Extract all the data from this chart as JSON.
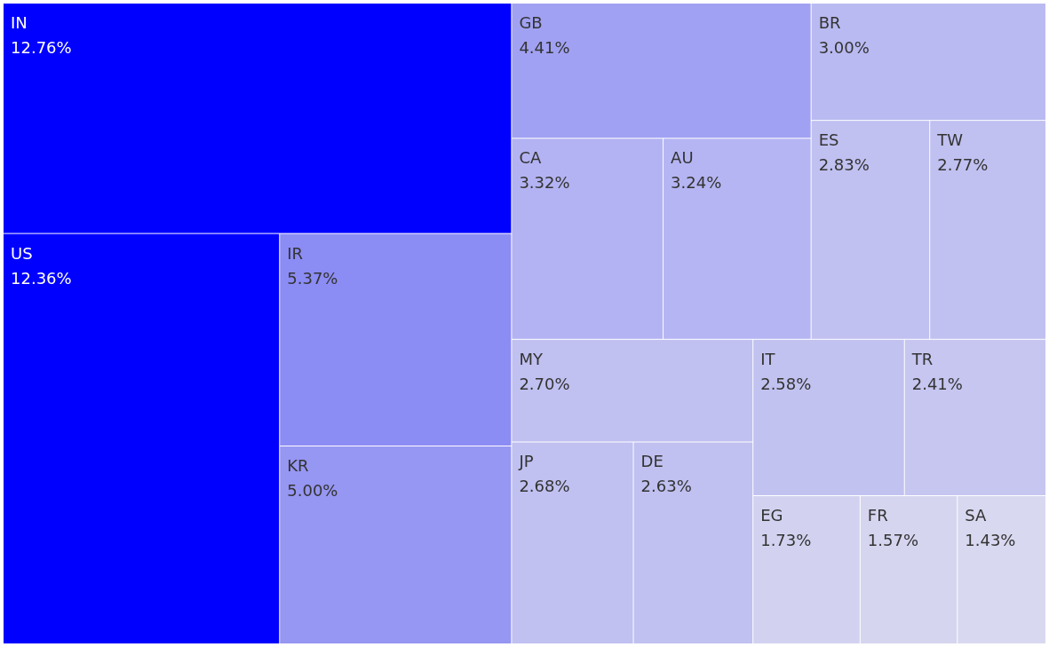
{
  "chart_data": {
    "type": "other",
    "categories": [
      "IN",
      "US",
      "IR",
      "KR",
      "GB",
      "CA",
      "AU",
      "BR",
      "ES",
      "TW",
      "MY",
      "JP",
      "DE",
      "IT",
      "TR",
      "EG",
      "FR",
      "SA"
    ],
    "values": [
      12.76,
      12.36,
      5.37,
      5.0,
      4.41,
      3.32,
      3.24,
      3.0,
      2.83,
      2.77,
      2.7,
      2.68,
      2.63,
      2.58,
      2.41,
      1.73,
      1.57,
      1.43
    ],
    "value_labels": [
      "12.76%",
      "12.36%",
      "5.37%",
      "5.00%",
      "4.41%",
      "3.32%",
      "3.24%",
      "3.00%",
      "2.83%",
      "2.77%",
      "2.70%",
      "2.68%",
      "2.63%",
      "2.58%",
      "2.41%",
      "1.73%",
      "1.57%",
      "1.43%"
    ],
    "colors": [
      "#0000ff",
      "#0000ff",
      "#8c8cf5",
      "#9696f3",
      "#a1a1f3",
      "#b3b3f3",
      "#b5b5f3",
      "#babaf2",
      "#c0c0f1",
      "#c0c0f1",
      "#c0c0f1",
      "#c0c0f1",
      "#c0c0f1",
      "#c2c2f1",
      "#c6c6f1",
      "#d2d2f0",
      "#d5d5f0",
      "#d8d8f0"
    ]
  }
}
